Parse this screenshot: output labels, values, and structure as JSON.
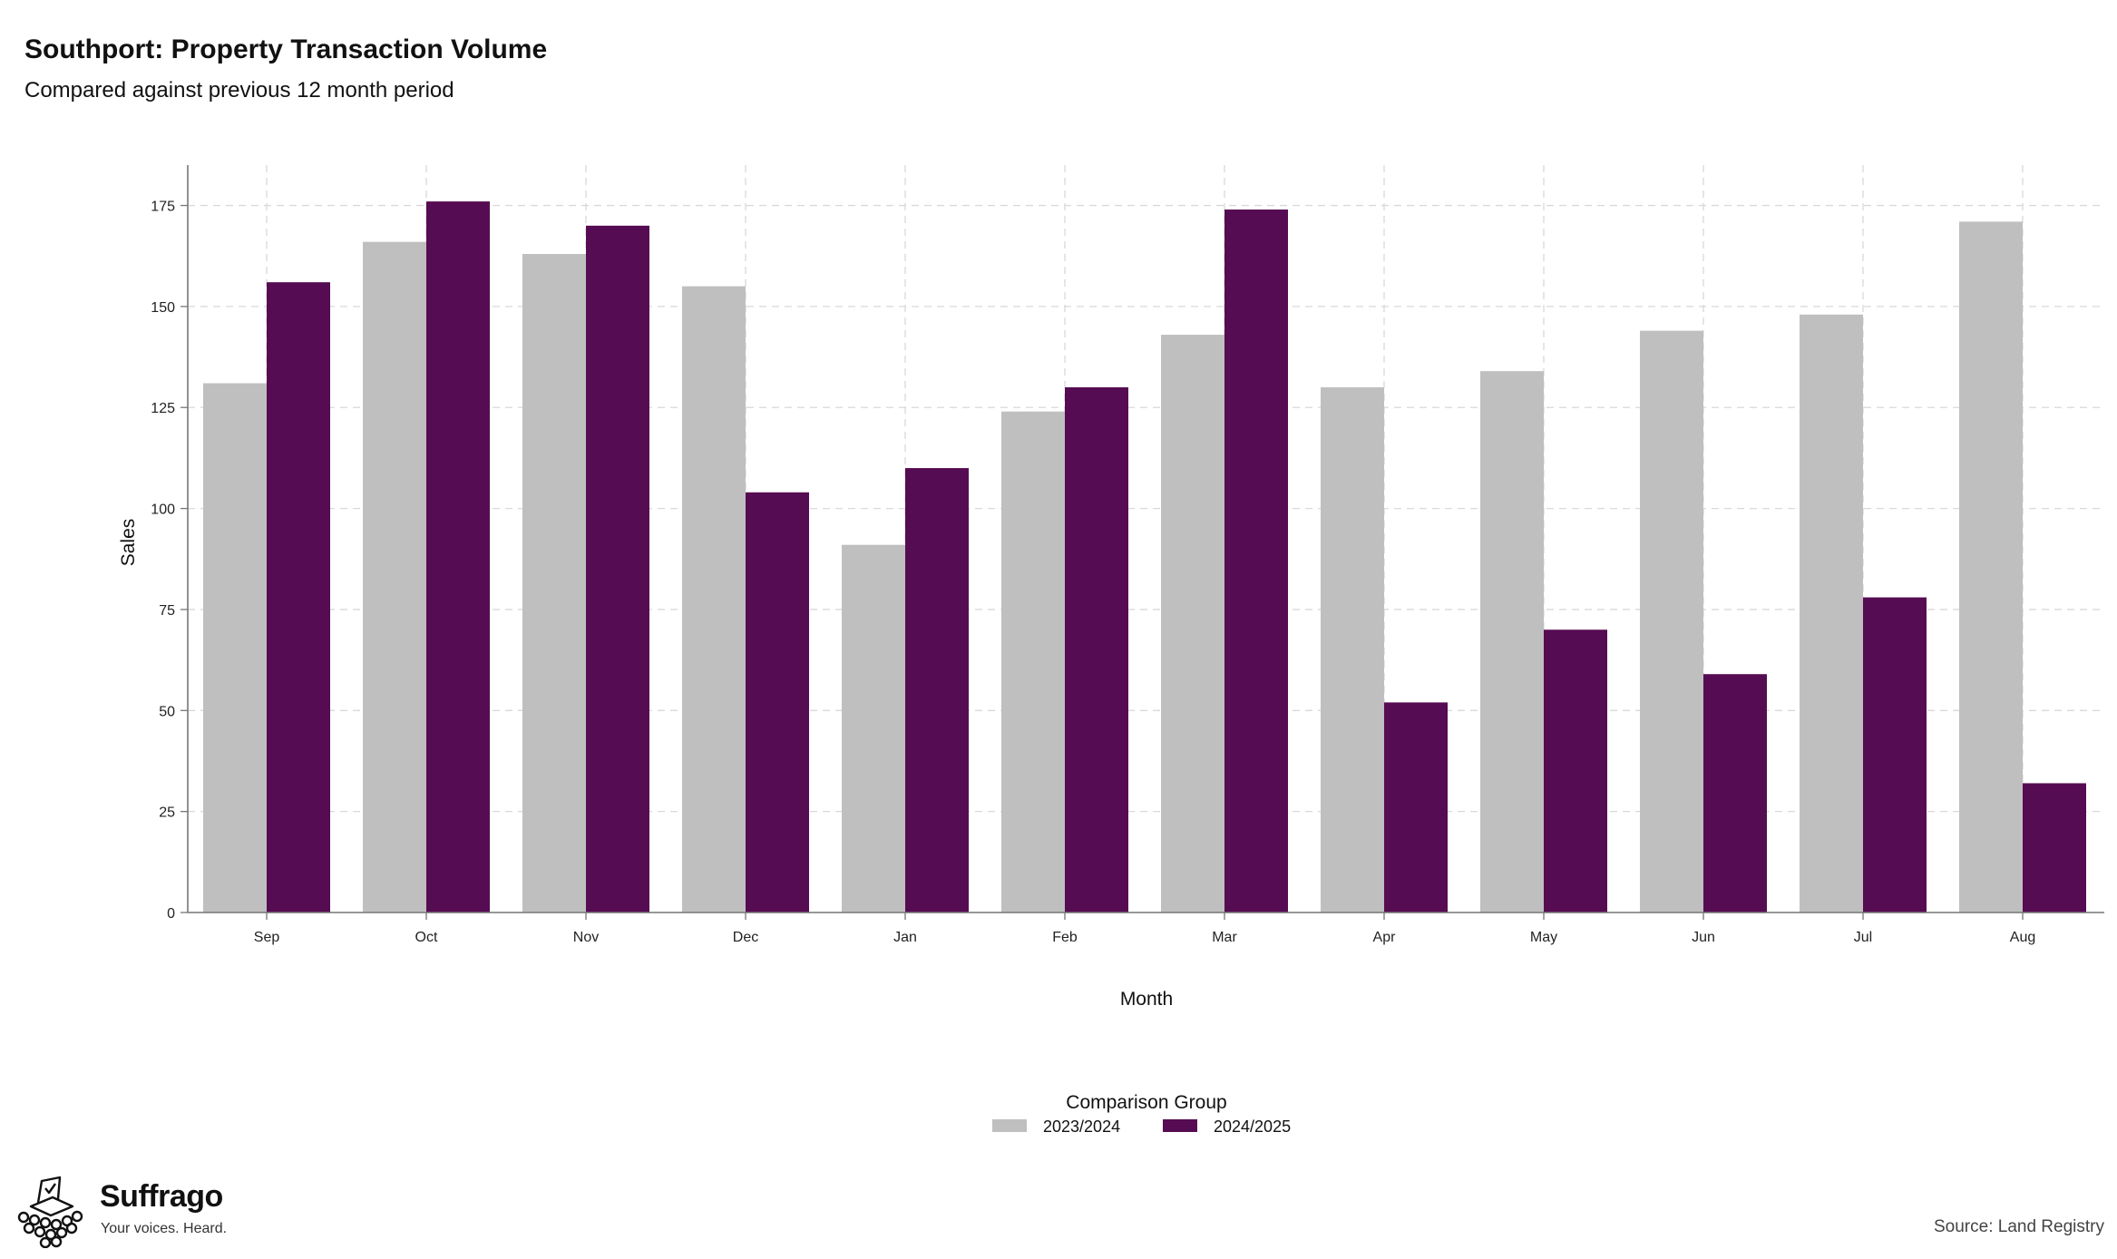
{
  "chart_data": {
    "type": "bar",
    "title": "Southport: Property Transaction Volume",
    "subtitle": "Compared against previous 12 month period",
    "xlabel": "Month",
    "ylabel": "Sales",
    "categories": [
      "Sep",
      "Oct",
      "Nov",
      "Dec",
      "Jan",
      "Feb",
      "Mar",
      "Apr",
      "May",
      "Jun",
      "Jul",
      "Aug"
    ],
    "series": [
      {
        "name": "2023/2024",
        "color": "#bfbfbf",
        "values": [
          131,
          166,
          163,
          155,
          91,
          124,
          143,
          130,
          134,
          144,
          148,
          171
        ]
      },
      {
        "name": "2024/2025",
        "color": "#560c52",
        "values": [
          156,
          176,
          170,
          104,
          110,
          130,
          174,
          52,
          70,
          59,
          78,
          32
        ]
      }
    ],
    "ylim": [
      0,
      185
    ],
    "yticks": [
      0,
      25,
      50,
      75,
      100,
      125,
      150,
      175
    ],
    "grid": true,
    "legend": {
      "title": "Comparison Group",
      "position": "bottom"
    }
  },
  "branding": {
    "name": "Suffrago",
    "tagline": "Your voices. Heard.",
    "icon": "ballot-box-icon"
  },
  "source": "Source: Land Registry"
}
